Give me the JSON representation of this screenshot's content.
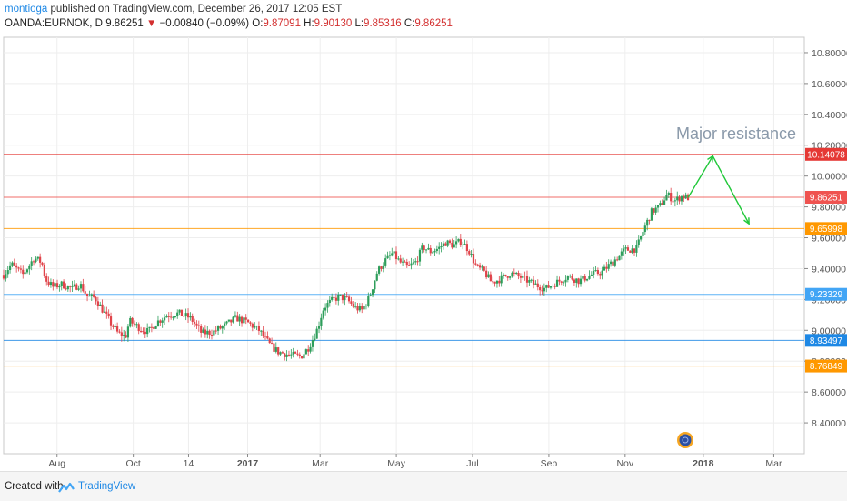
{
  "header": {
    "user": "montioga",
    "published": " published on TradingView.com, December 26, 2017 12:05 EST",
    "symbol": "OANDA:EURNOK, D",
    "price": "9.86251",
    "arrow": "▼",
    "change": "−0.00840 (−0.09%)",
    "o_label": "O:",
    "o": "9.87091",
    "h_label": "H:",
    "h": "9.90130",
    "l_label": "L:",
    "l": "9.85316",
    "c_label": "C:",
    "c": "9.86251"
  },
  "footer": {
    "created": "Created with",
    "brand": "TradingView"
  },
  "chart_data": {
    "type": "candlestick",
    "symbol": "OANDA:EURNOK",
    "interval": "D",
    "annotation": "Major resistance",
    "ylim": [
      8.2,
      10.9
    ],
    "xlim_months": [
      -1,
      20
    ],
    "y_ticks": [
      "10.80000",
      "10.60000",
      "10.40000",
      "10.20000",
      "10.00000",
      "9.80000",
      "9.60000",
      "9.40000",
      "9.20000",
      "9.00000",
      "8.80000",
      "8.60000",
      "8.40000"
    ],
    "x_ticks": [
      {
        "label": "Aug",
        "m": 0.4
      },
      {
        "label": "Oct",
        "m": 2.4
      },
      {
        "label": "14",
        "m": 3.85
      },
      {
        "label": "2017",
        "m": 5.4
      },
      {
        "label": "Mar",
        "m": 7.3
      },
      {
        "label": "May",
        "m": 9.3
      },
      {
        "label": "Jul",
        "m": 11.3
      },
      {
        "label": "Sep",
        "m": 13.3
      },
      {
        "label": "Nov",
        "m": 15.3
      },
      {
        "label": "2018",
        "m": 17.35
      },
      {
        "label": "Mar",
        "m": 19.2
      }
    ],
    "levels": [
      {
        "value": 10.14078,
        "label": "10.14078",
        "color": "#e53935"
      },
      {
        "value": 9.86251,
        "label": "9.86251",
        "color": "#ef5350"
      },
      {
        "value": 9.65998,
        "label": "9.65998",
        "color": "#ff9800"
      },
      {
        "value": 9.23329,
        "label": "9.23329",
        "color": "#42a5f5"
      },
      {
        "value": 8.93497,
        "label": "8.93497",
        "color": "#1e88e5"
      },
      {
        "value": 8.76849,
        "label": "8.76849",
        "color": "#ff9800"
      }
    ],
    "price_path": [
      [
        -1.0,
        9.36
      ],
      [
        -0.8,
        9.43
      ],
      [
        -0.5,
        9.36
      ],
      [
        -0.2,
        9.47
      ],
      [
        0.0,
        9.44
      ],
      [
        0.1,
        9.33
      ],
      [
        0.3,
        9.28
      ],
      [
        0.5,
        9.3
      ],
      [
        0.8,
        9.27
      ],
      [
        1.0,
        9.3
      ],
      [
        1.2,
        9.22
      ],
      [
        1.4,
        9.21
      ],
      [
        1.6,
        9.13
      ],
      [
        1.8,
        9.05
      ],
      [
        2.0,
        8.98
      ],
      [
        2.2,
        8.96
      ],
      [
        2.3,
        9.06
      ],
      [
        2.6,
        9.01
      ],
      [
        2.8,
        8.99
      ],
      [
        3.0,
        9.05
      ],
      [
        3.3,
        9.1
      ],
      [
        3.6,
        9.11
      ],
      [
        3.9,
        9.08
      ],
      [
        4.2,
        8.98
      ],
      [
        4.5,
        8.99
      ],
      [
        4.8,
        9.03
      ],
      [
        5.1,
        9.08
      ],
      [
        5.4,
        9.05
      ],
      [
        5.7,
        9.0
      ],
      [
        6.0,
        8.9
      ],
      [
        6.2,
        8.86
      ],
      [
        6.5,
        8.84
      ],
      [
        6.8,
        8.83
      ],
      [
        7.0,
        8.89
      ],
      [
        7.2,
        8.99
      ],
      [
        7.4,
        9.15
      ],
      [
        7.6,
        9.19
      ],
      [
        7.8,
        9.22
      ],
      [
        8.0,
        9.2
      ],
      [
        8.2,
        9.15
      ],
      [
        8.4,
        9.13
      ],
      [
        8.6,
        9.22
      ],
      [
        8.8,
        9.38
      ],
      [
        9.0,
        9.45
      ],
      [
        9.2,
        9.5
      ],
      [
        9.4,
        9.44
      ],
      [
        9.6,
        9.41
      ],
      [
        9.8,
        9.44
      ],
      [
        10.0,
        9.54
      ],
      [
        10.2,
        9.51
      ],
      [
        10.4,
        9.53
      ],
      [
        10.6,
        9.57
      ],
      [
        10.8,
        9.55
      ],
      [
        11.0,
        9.58
      ],
      [
        11.2,
        9.52
      ],
      [
        11.4,
        9.41
      ],
      [
        11.6,
        9.38
      ],
      [
        11.8,
        9.31
      ],
      [
        12.0,
        9.33
      ],
      [
        12.3,
        9.37
      ],
      [
        12.6,
        9.34
      ],
      [
        12.9,
        9.3
      ],
      [
        13.2,
        9.27
      ],
      [
        13.5,
        9.31
      ],
      [
        13.8,
        9.35
      ],
      [
        14.1,
        9.32
      ],
      [
        14.4,
        9.36
      ],
      [
        14.7,
        9.38
      ],
      [
        15.0,
        9.45
      ],
      [
        15.3,
        9.52
      ],
      [
        15.6,
        9.53
      ],
      [
        15.8,
        9.66
      ],
      [
        16.0,
        9.77
      ],
      [
        16.2,
        9.8
      ],
      [
        16.4,
        9.88
      ],
      [
        16.6,
        9.84
      ],
      [
        16.8,
        9.87
      ],
      [
        16.95,
        9.86
      ]
    ],
    "projection": [
      [
        16.95,
        9.86
      ],
      [
        17.6,
        10.13
      ],
      [
        18.55,
        9.69
      ]
    ]
  }
}
